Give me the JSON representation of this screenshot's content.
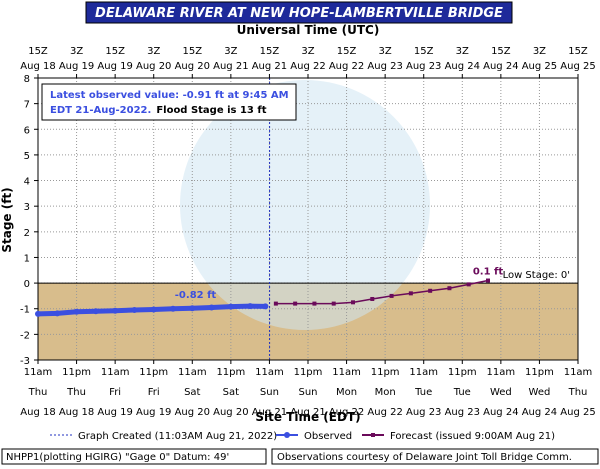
{
  "chart_data": {
    "type": "line",
    "title": "DELAWARE RIVER AT NEW HOPE-LAMBERTVILLE BRIDGE",
    "x2_label": "Universal Time (UTC)",
    "x_label": "Site Time (EDT)",
    "y_label": "Stage (ft)",
    "ylim": [
      -3,
      8
    ],
    "yticks": [
      -3,
      -2,
      -1,
      0,
      1,
      2,
      3,
      4,
      5,
      6,
      7,
      8
    ],
    "xlim": [
      "2022-08-18T11:00",
      "2022-08-25T11:00"
    ],
    "xticks": [
      {
        "value": "2022-08-18T11:00",
        "label": [
          "11am",
          "Thu",
          "Aug 18"
        ]
      },
      {
        "value": "2022-08-18T23:00",
        "label": [
          "11pm",
          "Thu",
          "Aug 18"
        ]
      },
      {
        "value": "2022-08-19T11:00",
        "label": [
          "11am",
          "Fri",
          "Aug 19"
        ]
      },
      {
        "value": "2022-08-19T23:00",
        "label": [
          "11pm",
          "Fri",
          "Aug 19"
        ]
      },
      {
        "value": "2022-08-20T11:00",
        "label": [
          "11am",
          "Sat",
          "Aug 20"
        ]
      },
      {
        "value": "2022-08-20T23:00",
        "label": [
          "11pm",
          "Sat",
          "Aug 20"
        ]
      },
      {
        "value": "2022-08-21T11:00",
        "label": [
          "11am",
          "Sun",
          "Aug 21"
        ]
      },
      {
        "value": "2022-08-21T23:00",
        "label": [
          "11pm",
          "Sun",
          "Aug 21"
        ]
      },
      {
        "value": "2022-08-22T11:00",
        "label": [
          "11am",
          "Mon",
          "Aug 22"
        ]
      },
      {
        "value": "2022-08-22T23:00",
        "label": [
          "11pm",
          "Mon",
          "Aug 22"
        ]
      },
      {
        "value": "2022-08-23T11:00",
        "label": [
          "11am",
          "Tue",
          "Aug 23"
        ]
      },
      {
        "value": "2022-08-23T23:00",
        "label": [
          "11pm",
          "Tue",
          "Aug 23"
        ]
      },
      {
        "value": "2022-08-24T11:00",
        "label": [
          "11am",
          "Wed",
          "Aug 24"
        ]
      },
      {
        "value": "2022-08-24T23:00",
        "label": [
          "11pm",
          "Wed",
          "Aug 24"
        ]
      },
      {
        "value": "2022-08-25T11:00",
        "label": [
          "11am",
          "Thu",
          "Aug 25"
        ]
      }
    ],
    "x2ticks": [
      {
        "value": "2022-08-18T11:00",
        "label": [
          "15Z",
          "Aug 18"
        ]
      },
      {
        "value": "2022-08-18T23:00",
        "label": [
          "3Z",
          "Aug 19"
        ]
      },
      {
        "value": "2022-08-19T11:00",
        "label": [
          "15Z",
          "Aug 19"
        ]
      },
      {
        "value": "2022-08-19T23:00",
        "label": [
          "3Z",
          "Aug 20"
        ]
      },
      {
        "value": "2022-08-20T11:00",
        "label": [
          "15Z",
          "Aug 20"
        ]
      },
      {
        "value": "2022-08-20T23:00",
        "label": [
          "3Z",
          "Aug 21"
        ]
      },
      {
        "value": "2022-08-21T11:00",
        "label": [
          "15Z",
          "Aug 21"
        ]
      },
      {
        "value": "2022-08-21T23:00",
        "label": [
          "3Z",
          "Aug 22"
        ]
      },
      {
        "value": "2022-08-22T11:00",
        "label": [
          "15Z",
          "Aug 22"
        ]
      },
      {
        "value": "2022-08-22T23:00",
        "label": [
          "3Z",
          "Aug 23"
        ]
      },
      {
        "value": "2022-08-23T11:00",
        "label": [
          "15Z",
          "Aug 23"
        ]
      },
      {
        "value": "2022-08-23T23:00",
        "label": [
          "3Z",
          "Aug 24"
        ]
      },
      {
        "value": "2022-08-24T11:00",
        "label": [
          "15Z",
          "Aug 24"
        ]
      },
      {
        "value": "2022-08-24T23:00",
        "label": [
          "3Z",
          "Aug 25"
        ]
      },
      {
        "value": "2022-08-25T11:00",
        "label": [
          "15Z",
          "Aug 25"
        ]
      }
    ],
    "series": [
      {
        "name": "Observed",
        "color": "#3b4fe0",
        "x": [
          "2022-08-18T11:00",
          "2022-08-18T17:00",
          "2022-08-18T23:00",
          "2022-08-19T05:00",
          "2022-08-19T11:00",
          "2022-08-19T17:00",
          "2022-08-19T23:00",
          "2022-08-20T05:00",
          "2022-08-20T11:00",
          "2022-08-20T17:00",
          "2022-08-20T23:00",
          "2022-08-21T05:00",
          "2022-08-21T09:45"
        ],
        "values": [
          -1.2,
          -1.18,
          -1.12,
          -1.1,
          -1.08,
          -1.05,
          -1.03,
          -1.0,
          -0.98,
          -0.95,
          -0.92,
          -0.9,
          -0.91
        ]
      },
      {
        "name": "Forecast (issued 9:00AM Aug 21)",
        "color": "#6a0a5a",
        "x": [
          "2022-08-21T13:00",
          "2022-08-21T19:00",
          "2022-08-22T01:00",
          "2022-08-22T07:00",
          "2022-08-22T13:00",
          "2022-08-22T19:00",
          "2022-08-23T01:00",
          "2022-08-23T07:00",
          "2022-08-23T13:00",
          "2022-08-23T19:00",
          "2022-08-24T01:00",
          "2022-08-24T07:00"
        ],
        "values": [
          -0.8,
          -0.8,
          -0.8,
          -0.8,
          -0.75,
          -0.62,
          -0.5,
          -0.4,
          -0.3,
          -0.2,
          -0.05,
          0.1
        ]
      }
    ],
    "created": {
      "x": "2022-08-21T11:03",
      "label": "Graph Created (11:03AM Aug 21, 2022)"
    },
    "annotations": [
      {
        "text": "-0.82 ft",
        "x": "2022-08-20T12:00",
        "y": -0.82
      },
      {
        "text": "0.1 ft",
        "x": "2022-08-24T07:00",
        "y": 0.1
      }
    ],
    "low_stage": {
      "value": 0,
      "label": "Low Stage: 0'"
    },
    "info": [
      "Latest observed value: -0.91 ft at 9:45 AM",
      "EDT 21-Aug-2022.",
      "Flood Stage is 13 ft"
    ],
    "footer": [
      "NHPP1(plotting HGIRG) \"Gage 0\" Datum: 49'",
      "Observations courtesy of Delaware Joint Toll Bridge Comm."
    ]
  }
}
